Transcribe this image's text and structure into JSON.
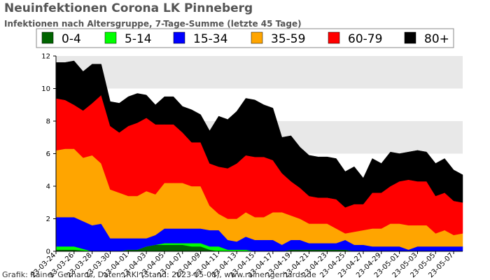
{
  "title": "Neuinfektionen Corona LK Pinneberg",
  "subtitle": "Infektionen nach Altersgruppe, 7-Tage-Summe (letzte 45 Tage)",
  "footer": "Grafik: Rainer Gerhards, Daten: RKI (Stand: 2023-05-08), www.rainer-gerhards.de",
  "chart_data": {
    "type": "area",
    "stacked": true,
    "title": "Neuinfektionen Corona LK Pinneberg",
    "subtitle": "Infektionen nach Altersgruppe, 7-Tage-Summe (letzte 45 Tage)",
    "ylim": [
      0,
      12
    ],
    "yticks": [
      0,
      2,
      4,
      6,
      8,
      10,
      12
    ],
    "grid": "horizontal bands",
    "legend_position": "top",
    "x": [
      "2023-03-24",
      "2023-03-25",
      "2023-03-26",
      "2023-03-27",
      "2023-03-28",
      "2023-03-29",
      "2023-03-30",
      "2023-03-31",
      "2023-04-01",
      "2023-04-02",
      "2023-04-03",
      "2023-04-04",
      "2023-04-05",
      "2023-04-06",
      "2023-04-07",
      "2023-04-08",
      "2023-04-09",
      "2023-04-10",
      "2023-04-11",
      "2023-04-12",
      "2023-04-13",
      "2023-04-14",
      "2023-04-15",
      "2023-04-16",
      "2023-04-17",
      "2023-04-18",
      "2023-04-19",
      "2023-04-20",
      "2023-04-21",
      "2023-04-22",
      "2023-04-23",
      "2023-04-24",
      "2023-04-25",
      "2023-04-26",
      "2023-04-27",
      "2023-04-28",
      "2023-04-29",
      "2023-04-30",
      "2023-05-01",
      "2023-05-02",
      "2023-05-03",
      "2023-05-04",
      "2023-05-05",
      "2023-05-06",
      "2023-05-07",
      "2023-05-08"
    ],
    "xtick_labels": [
      "23-03-24",
      "23-03-26",
      "23-03-28",
      "23-03-30",
      "23-04-01",
      "23-04-03",
      "23-04-05",
      "23-04-07",
      "23-04-09",
      "23-04-11",
      "23-04-13",
      "23-04-15",
      "23-04-17",
      "23-04-19",
      "23-04-21",
      "23-04-23",
      "23-04-25",
      "23-04-27",
      "23-04-29",
      "23-05-01",
      "23-05-03",
      "23-05-05",
      "23-05-07"
    ],
    "series": [
      {
        "name": "0-4",
        "color": "#006400",
        "values": [
          0.1,
          0.1,
          0.1,
          0.05,
          0,
          0,
          0,
          0,
          0.1,
          0.1,
          0.3,
          0.4,
          0.4,
          0.4,
          0.4,
          0.3,
          0.3,
          0.1,
          0,
          0,
          0,
          0,
          0,
          0,
          0,
          0,
          0.1,
          0.1,
          0.1,
          0.1,
          0.1,
          0.1,
          0.1,
          0,
          0,
          0,
          0,
          0,
          0,
          0,
          0,
          0,
          0,
          0,
          0,
          0
        ]
      },
      {
        "name": "5-14",
        "color": "#00ff00",
        "values": [
          0.2,
          0.2,
          0.2,
          0.1,
          0,
          0,
          0,
          0,
          0,
          0,
          0,
          0,
          0.1,
          0.1,
          0.1,
          0.2,
          0.2,
          0.2,
          0.3,
          0.1,
          0.1,
          0.1,
          0,
          0,
          0,
          0,
          0,
          0,
          0,
          0,
          0,
          0,
          0,
          0,
          0,
          0,
          0,
          0,
          0,
          0,
          0,
          0,
          0,
          0,
          0,
          0
        ]
      },
      {
        "name": "15-34",
        "color": "#0000ff",
        "values": [
          1.8,
          1.8,
          1.8,
          1.7,
          1.6,
          1.7,
          0.8,
          0.8,
          0.7,
          0.7,
          0.5,
          0.6,
          0.9,
          0.9,
          0.9,
          0.9,
          0.9,
          1.0,
          1.0,
          0.6,
          0.5,
          0.8,
          0.7,
          0.7,
          0.7,
          0.4,
          0.6,
          0.6,
          0.4,
          0.4,
          0.4,
          0.4,
          0.6,
          0.4,
          0.4,
          0.3,
          0.3,
          0.3,
          0.3,
          0.1,
          0.3,
          0.3,
          0.3,
          0.3,
          0.3,
          0.3
        ]
      },
      {
        "name": "35-59",
        "color": "#ffa500",
        "values": [
          4.1,
          4.2,
          4.2,
          3.9,
          4.3,
          3.7,
          3.0,
          2.8,
          2.6,
          2.6,
          2.9,
          2.5,
          2.8,
          2.8,
          2.8,
          2.6,
          2.6,
          1.5,
          1.0,
          1.3,
          1.4,
          1.5,
          1.4,
          1.4,
          1.7,
          2.0,
          1.5,
          1.3,
          1.2,
          1.2,
          1.2,
          0.9,
          0.4,
          0.8,
          0.9,
          1.1,
          1.1,
          1.4,
          1.4,
          1.5,
          1.3,
          1.3,
          0.8,
          1.0,
          0.7,
          0.8
        ]
      },
      {
        "name": "60-79",
        "color": "#ff0000",
        "values": [
          3.2,
          3.0,
          2.7,
          2.9,
          3.2,
          4.2,
          3.9,
          3.7,
          4.3,
          4.5,
          4.5,
          4.3,
          3.6,
          3.6,
          3.1,
          2.7,
          2.7,
          2.6,
          2.9,
          3.1,
          3.4,
          3.5,
          3.7,
          3.7,
          3.2,
          2.4,
          2.1,
          1.9,
          1.7,
          1.6,
          1.6,
          1.8,
          1.6,
          1.7,
          1.6,
          2.2,
          2.2,
          2.3,
          2.6,
          2.8,
          2.7,
          2.7,
          2.3,
          2.3,
          2.1,
          1.9
        ]
      },
      {
        "name": "80+",
        "color": "#000000",
        "values": [
          2.2,
          2.3,
          2.7,
          2.4,
          2.4,
          1.9,
          1.5,
          1.8,
          1.8,
          1.8,
          1.4,
          1.2,
          1.7,
          1.7,
          1.6,
          2.0,
          1.7,
          2.0,
          3.1,
          3.0,
          3.2,
          3.5,
          3.5,
          3.2,
          3.2,
          2.2,
          2.8,
          2.5,
          2.5,
          2.5,
          2.5,
          2.5,
          2.2,
          2.3,
          1.6,
          2.1,
          1.8,
          2.1,
          1.7,
          1.7,
          1.9,
          1.8,
          2.0,
          2.1,
          1.9,
          1.7
        ]
      }
    ]
  }
}
